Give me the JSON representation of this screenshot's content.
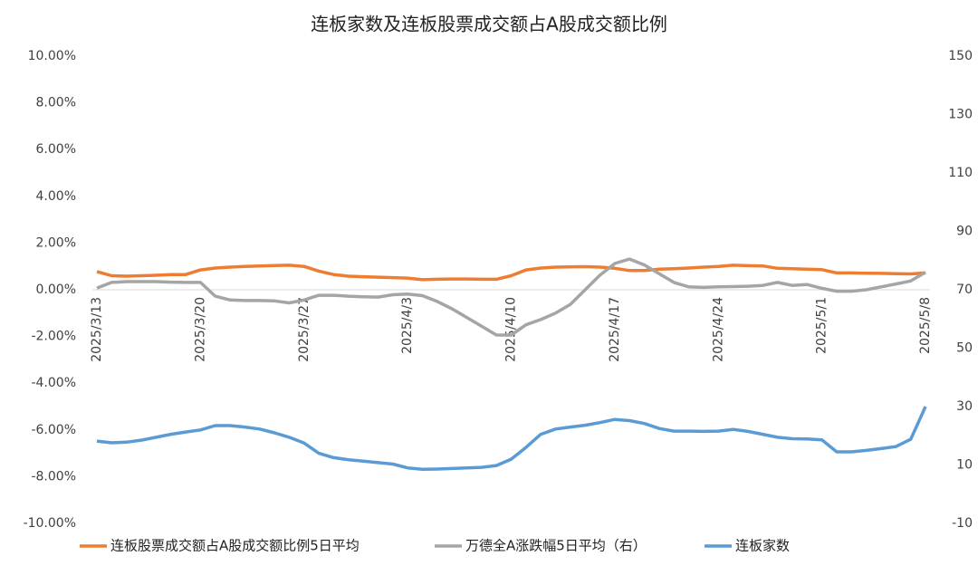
{
  "chart_data": {
    "type": "line",
    "title": "连板家数及连板股票成交额占A股成交额比例",
    "categories": [
      "2025/3/13",
      null,
      null,
      null,
      null,
      null,
      null,
      "2025/3/20",
      null,
      null,
      null,
      null,
      null,
      null,
      "2025/3/27",
      null,
      null,
      null,
      null,
      null,
      null,
      "2025/4/3",
      null,
      null,
      null,
      null,
      null,
      null,
      "2025/4/10",
      null,
      null,
      null,
      null,
      null,
      null,
      "2025/4/17",
      null,
      null,
      null,
      null,
      null,
      null,
      "2025/4/24",
      null,
      null,
      null,
      null,
      null,
      null,
      "2025/5/1",
      null,
      null,
      null,
      null,
      null,
      null,
      "2025/5/8"
    ],
    "ylim": [
      -10,
      10
    ],
    "yticks": [
      {
        "value": 10,
        "label": "10.00%"
      },
      {
        "value": 8,
        "label": "8.00%"
      },
      {
        "value": 6,
        "label": "6.00%"
      },
      {
        "value": 4,
        "label": "4.00%"
      },
      {
        "value": 2,
        "label": "2.00%"
      },
      {
        "value": 0,
        "label": "0.00%"
      },
      {
        "value": -2,
        "label": "-2.00%"
      },
      {
        "value": -4,
        "label": "-4.00%"
      },
      {
        "value": -6,
        "label": "-6.00%"
      },
      {
        "value": -8,
        "label": "-8.00%"
      },
      {
        "value": -10,
        "label": "-10.00%"
      }
    ],
    "y2lim": [
      -10,
      150
    ],
    "y2ticks": [
      150,
      130,
      110,
      90,
      70,
      50,
      30,
      10,
      -10
    ],
    "series": [
      {
        "name": "连板股票成交额占A股成交额比例5日平均",
        "color": "#ed7d31",
        "values": [
          0.78,
          0.6,
          0.58,
          0.6,
          0.62,
          0.65,
          0.65,
          0.85,
          0.93,
          0.97,
          1.0,
          1.02,
          1.04,
          1.05,
          1.0,
          0.8,
          0.65,
          0.58,
          0.56,
          0.54,
          0.52,
          0.5,
          0.43,
          0.45,
          0.46,
          0.46,
          0.45,
          0.45,
          0.6,
          0.85,
          0.93,
          0.97,
          0.98,
          0.99,
          0.97,
          0.92,
          0.82,
          0.82,
          0.88,
          0.9,
          0.93,
          0.97,
          1.0,
          1.05,
          1.03,
          1.02,
          0.92,
          0.9,
          0.88,
          0.86,
          0.72,
          0.72,
          0.71,
          0.7,
          0.69,
          0.68,
          0.72
        ]
      },
      {
        "name": "万德全A涨跌幅5日平均（右）",
        "color": "#a5a5a5",
        "axis": "y2",
        "values": [
          70.6,
          72.5,
          72.8,
          72.8,
          72.8,
          72.6,
          72.5,
          72.5,
          67.8,
          66.5,
          66.3,
          66.3,
          66.2,
          65.5,
          66.5,
          68.1,
          68.1,
          67.8,
          67.6,
          67.5,
          68.3,
          68.5,
          68,
          66,
          63.5,
          60.5,
          57.5,
          54.5,
          54.5,
          58,
          59.8,
          62,
          65,
          70,
          75,
          79,
          80.5,
          78.5,
          75.5,
          72.5,
          71,
          70.8,
          71,
          71.1,
          71.2,
          71.5,
          72.5,
          71.5,
          71.8,
          70.5,
          69.5,
          69.5,
          70,
          71,
          72,
          73,
          76
        ]
      },
      {
        "name": "连板家数",
        "color": "#5b9bd5",
        "axis": "y2",
        "values": [
          18.2,
          17.6,
          17.8,
          18.5,
          19.5,
          20.5,
          21.3,
          22,
          23.5,
          23.5,
          23,
          22.3,
          21,
          19.5,
          17.5,
          14,
          12.5,
          11.8,
          11.3,
          10.8,
          10.3,
          9,
          8.5,
          8.6,
          8.8,
          9,
          9.2,
          9.8,
          12,
          16,
          20.5,
          22.3,
          23,
          23.6,
          24.5,
          25.6,
          25.2,
          24.2,
          22.5,
          21.6,
          21.6,
          21.5,
          21.6,
          22.2,
          21.5,
          20.5,
          19.5,
          19,
          18.9,
          18.6,
          14.5,
          14.5,
          15,
          15.6,
          16.3,
          18.8,
          30
        ]
      }
    ]
  }
}
